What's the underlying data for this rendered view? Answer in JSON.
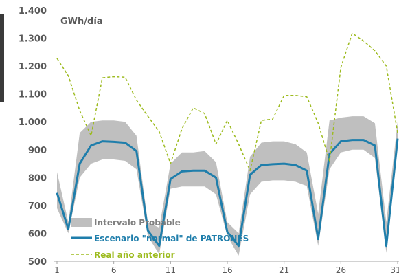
{
  "chart_data": {
    "type": "line",
    "unit_label": "GWh/día",
    "ylim": [
      500,
      1400
    ],
    "yticks": [
      "1.400",
      "1.300",
      "1.200",
      "1.100",
      "1.000",
      "900",
      "800",
      "700",
      "600",
      "500"
    ],
    "ytick_values": [
      1400,
      1300,
      1200,
      1100,
      1000,
      900,
      800,
      700,
      600,
      500
    ],
    "xlim": [
      1,
      31
    ],
    "xticks": [
      "1",
      "6",
      "11",
      "16",
      "21",
      "26",
      "31"
    ],
    "xtick_values": [
      1,
      6,
      11,
      16,
      21,
      26,
      31
    ],
    "x": [
      1,
      2,
      3,
      4,
      5,
      6,
      7,
      8,
      9,
      10,
      11,
      12,
      13,
      14,
      15,
      16,
      17,
      18,
      19,
      20,
      21,
      22,
      23,
      24,
      25,
      26,
      27,
      28,
      29,
      30,
      31
    ],
    "series": [
      {
        "name": "Intervalo Probable",
        "kind": "band",
        "color": "#bfbfbf",
        "lower": [
          690,
          600,
          800,
          850,
          865,
          865,
          860,
          830,
          590,
          525,
          760,
          768,
          768,
          768,
          740,
          590,
          520,
          740,
          785,
          790,
          790,
          785,
          770,
          555,
          830,
          890,
          900,
          900,
          870,
          530,
          920
        ],
        "upper": [
          820,
          640,
          960,
          1000,
          1005,
          1005,
          1000,
          950,
          640,
          620,
          850,
          890,
          890,
          895,
          855,
          640,
          600,
          875,
          925,
          930,
          930,
          920,
          890,
          670,
          1005,
          1015,
          1020,
          1020,
          995,
          640,
          1000
        ]
      },
      {
        "name": "Escenario \"normal\" de PATRONES",
        "kind": "line",
        "color": "#1f7eab",
        "values": [
          745,
          615,
          850,
          915,
          930,
          928,
          925,
          895,
          610,
          555,
          795,
          822,
          825,
          825,
          800,
          605,
          555,
          810,
          845,
          848,
          850,
          845,
          825,
          580,
          885,
          930,
          935,
          935,
          915,
          555,
          940
        ]
      },
      {
        "name": "Real año anterior",
        "kind": "dashed",
        "color": "#9dbb1f",
        "values": [
          1228,
          1165,
          1040,
          950,
          1158,
          1162,
          1160,
          1078,
          1020,
          965,
          850,
          975,
          1050,
          1030,
          920,
          1005,
          920,
          825,
          1005,
          1010,
          1095,
          1095,
          1090,
          995,
          860,
          1195,
          1318,
          1290,
          1255,
          1200,
          960
        ]
      }
    ],
    "legend": {
      "position": "bottom-left",
      "entries": [
        "Intervalo Probable",
        "Escenario \"normal\" de PATRONES",
        "Real año anterior"
      ]
    },
    "grid": false
  }
}
